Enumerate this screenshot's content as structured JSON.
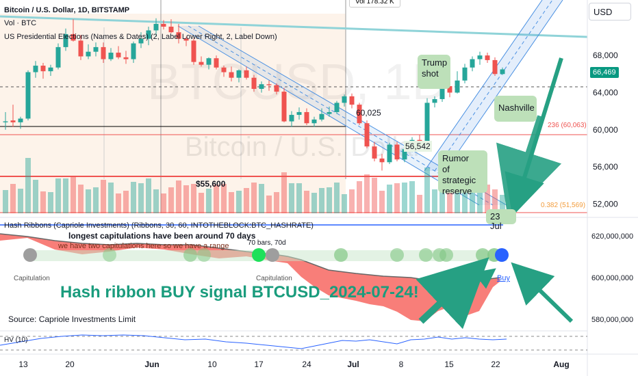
{
  "header": {
    "symbol_title": "Bitcoin / U.S. Dollar, 1D, BITSTAMP",
    "vol_label": "Vol · BTC",
    "indicator_label": "US Presidential Elections (Names & Dates) (2, Label Lower Right, 2, Label Down)",
    "vol_tooltip": "Vol 178.32 K",
    "currency_button": "USD"
  },
  "watermark": {
    "ticker": "BTCUSD, 1D",
    "name": "Bitcoin / U.S. Dollar"
  },
  "annotations": {
    "trump": "Trump\nshot",
    "nashville": "Nashville",
    "rumor": "Rumor\nof strategic\nreserve",
    "date_23jul": "23 Jul",
    "price_55600": "$55,600",
    "price_56542": "56,542",
    "price_60025": "60,025",
    "fib_236": "236 (60,063)",
    "fib_382": "0.382 (51,569)",
    "last_price": "66,469",
    "hash_label": "Hash Ribbons (Capriole Investments) (Ribbons, 30, 60, INTOTHEBLOCK:BTC_HASHRATE)",
    "note_line1": "longest capitulations have been around 70 days",
    "note_line2": "we have two capitulations here so we have a range",
    "bars_label": "70 bars, 70d",
    "capitulation": "Capitulation",
    "buy": "Buy",
    "big_title": "Hash ribbon BUY signal BTCUSD_2024-07-24!",
    "source": "Source: Capriole Investments Limit",
    "hv_label": "HV (10)"
  },
  "colors": {
    "up": "#26a69a",
    "down": "#ef5350",
    "ribbon_red": "#f7706a",
    "channel": "#4a90e2",
    "teal_arrow": "#26a083",
    "buy_dot": "#2962ff"
  },
  "chart_data": [
    {
      "type": "candlestick",
      "title": "Bitcoin / U.S. Dollar, 1D, BITSTAMP",
      "x_ticks": [
        "13",
        "20",
        "Jun",
        "10",
        "17",
        "24",
        "Jul",
        "8",
        "15",
        "22",
        "Aug"
      ],
      "y_ticks": [
        52000,
        56000,
        60000,
        64000,
        68000
      ],
      "ylim": [
        51000,
        72500
      ],
      "ohlc": [
        [
          60800,
          61900,
          60000,
          60900
        ],
        [
          61000,
          62700,
          60300,
          60800
        ],
        [
          60800,
          61400,
          60100,
          61200
        ],
        [
          61200,
          66400,
          61000,
          66200
        ],
        [
          66200,
          67400,
          65600,
          66900
        ],
        [
          66900,
          67200,
          65500,
          66300
        ],
        [
          66300,
          67000,
          65800,
          66700
        ],
        [
          66700,
          69300,
          66500,
          68900
        ],
        [
          68900,
          70900,
          68500,
          70300
        ],
        [
          70300,
          71900,
          69500,
          69600
        ],
        [
          69600,
          70200,
          67500,
          67900
        ],
        [
          67900,
          69200,
          67600,
          68400
        ],
        [
          68400,
          69400,
          67900,
          68900
        ],
        [
          68900,
          69400,
          67200,
          67600
        ],
        [
          67600,
          68800,
          67400,
          68300
        ],
        [
          68300,
          69000,
          67600,
          67800
        ],
        [
          67800,
          68500,
          67100,
          67600
        ],
        [
          67600,
          69500,
          67200,
          69300
        ],
        [
          69300,
          70500,
          68800,
          69800
        ],
        [
          69800,
          71100,
          69100,
          70700
        ],
        [
          70700,
          72000,
          70000,
          71400
        ],
        [
          71400,
          71800,
          70800,
          71100
        ],
        [
          71100,
          71900,
          70400,
          70500
        ],
        [
          70500,
          71400,
          69300,
          69800
        ],
        [
          69800,
          70000,
          69000,
          69600
        ],
        [
          69600,
          69800,
          67000,
          67300
        ],
        [
          67300,
          67900,
          66800,
          67000
        ],
        [
          67000,
          67800,
          66500,
          67700
        ],
        [
          67700,
          68000,
          66500,
          66700
        ],
        [
          66700,
          66900,
          65700,
          66200
        ],
        [
          66200,
          66800,
          65200,
          65600
        ],
        [
          65600,
          66500,
          65100,
          66400
        ],
        [
          66400,
          66800,
          65400,
          65600
        ],
        [
          65600,
          65900,
          64100,
          64400
        ],
        [
          64400,
          65200,
          64000,
          64900
        ],
        [
          64900,
          65300,
          64200,
          64800
        ],
        [
          64800,
          65000,
          63800,
          64100
        ],
        [
          64100,
          64500,
          60800,
          60900
        ],
        [
          60900,
          62000,
          60300,
          61600
        ],
        [
          61600,
          62400,
          61100,
          61900
        ],
        [
          61900,
          62300,
          60500,
          60700
        ],
        [
          60700,
          61400,
          60300,
          61100
        ],
        [
          61100,
          62300,
          60900,
          61700
        ],
        [
          61700,
          62500,
          61400,
          61900
        ],
        [
          61900,
          63100,
          61700,
          62900
        ],
        [
          62900,
          63800,
          62500,
          63600
        ],
        [
          63600,
          63900,
          62300,
          62700
        ],
        [
          62700,
          62900,
          60500,
          60700
        ],
        [
          60700,
          61000,
          58000,
          58200
        ],
        [
          58200,
          58700,
          56600,
          56900
        ],
        [
          56900,
          57400,
          55600,
          56500
        ],
        [
          56500,
          58600,
          56300,
          58400
        ],
        [
          58400,
          58700,
          56600,
          56800
        ],
        [
          56800,
          58300,
          56500,
          57900
        ],
        [
          57900,
          59200,
          57600,
          58900
        ],
        [
          58900,
          59500,
          58300,
          58800
        ],
        [
          58800,
          63400,
          58600,
          62900
        ],
        [
          62900,
          63600,
          62400,
          63300
        ],
        [
          63300,
          65300,
          63000,
          64700
        ],
        [
          64700,
          65100,
          63500,
          64000
        ],
        [
          64000,
          66300,
          63900,
          65300
        ],
        [
          65300,
          67100,
          65000,
          66700
        ],
        [
          66700,
          67900,
          66300,
          67600
        ],
        [
          67600,
          68400,
          67000,
          68000
        ],
        [
          68000,
          68300,
          67200,
          67500
        ],
        [
          67500,
          67800,
          65800,
          66000
        ],
        [
          66000,
          66700,
          65900,
          66500
        ]
      ]
    },
    {
      "type": "area",
      "title": "Hash Ribbons (Capriole Investments) (Ribbons, 30, 60, INTOTHEBLOCK:BTC_HASHRATE)",
      "y_ticks": [
        580000000,
        600000000,
        620000000
      ],
      "ylim": [
        575000000,
        625000000
      ]
    },
    {
      "type": "line",
      "title": "HV (10)"
    }
  ]
}
